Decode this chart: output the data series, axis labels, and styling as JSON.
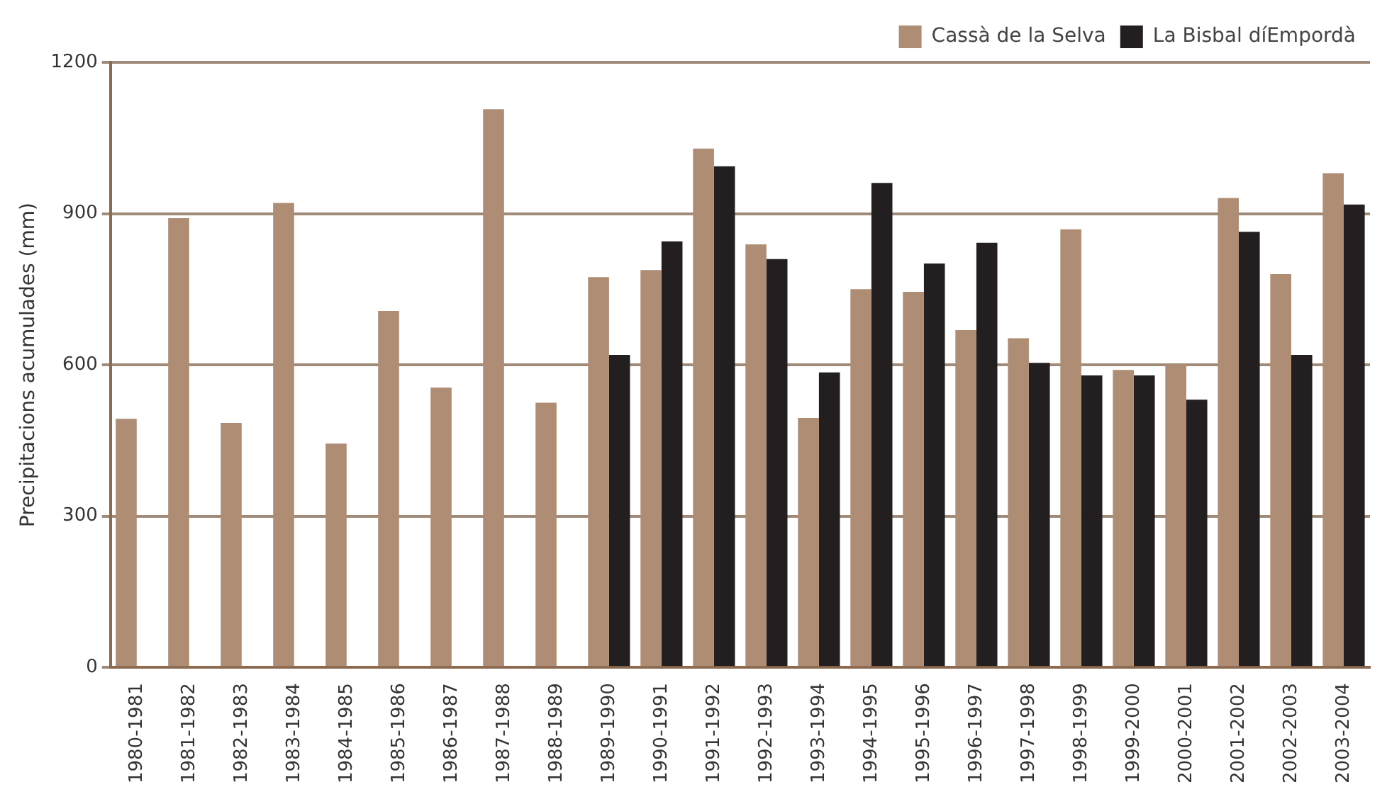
{
  "chart_data": {
    "type": "bar",
    "ylabel": "Precipitacions acumulades (mm)",
    "categories": [
      "1980-1981",
      "1981-1982",
      "1982-1983",
      "1983-1984",
      "1984-1985",
      "1985-1986",
      "1986-1987",
      "1987-1988",
      "1988-1989",
      "1989-1990",
      "1990-1991",
      "1991-1992",
      "1992-1993",
      "1993-1994",
      "1994-1995",
      "1995-1996",
      "1996-1997",
      "1997-1998",
      "1998-1999",
      "1999-2000",
      "2000-2001",
      "2001-2002",
      "2002-2003",
      "2003-2004"
    ],
    "series": [
      {
        "name": "Cassà de la Selva",
        "color": "#ae8d74",
        "values": [
          493,
          891,
          485,
          921,
          444,
          707,
          555,
          1107,
          525,
          774,
          788,
          1029,
          839,
          495,
          750,
          745,
          669,
          653,
          869,
          590,
          601,
          931,
          780,
          980
        ]
      },
      {
        "name": "La Bisbal díEmpordà",
        "color": "#231f20",
        "values": [
          null,
          null,
          null,
          null,
          null,
          null,
          null,
          null,
          null,
          620,
          845,
          994,
          810,
          585,
          961,
          801,
          842,
          604,
          579,
          579,
          531,
          864,
          620,
          918
        ]
      }
    ],
    "ylim": [
      0,
      1200
    ],
    "yticks": [
      0,
      300,
      600,
      900,
      1200
    ],
    "grid": "y",
    "legend": "top right"
  }
}
